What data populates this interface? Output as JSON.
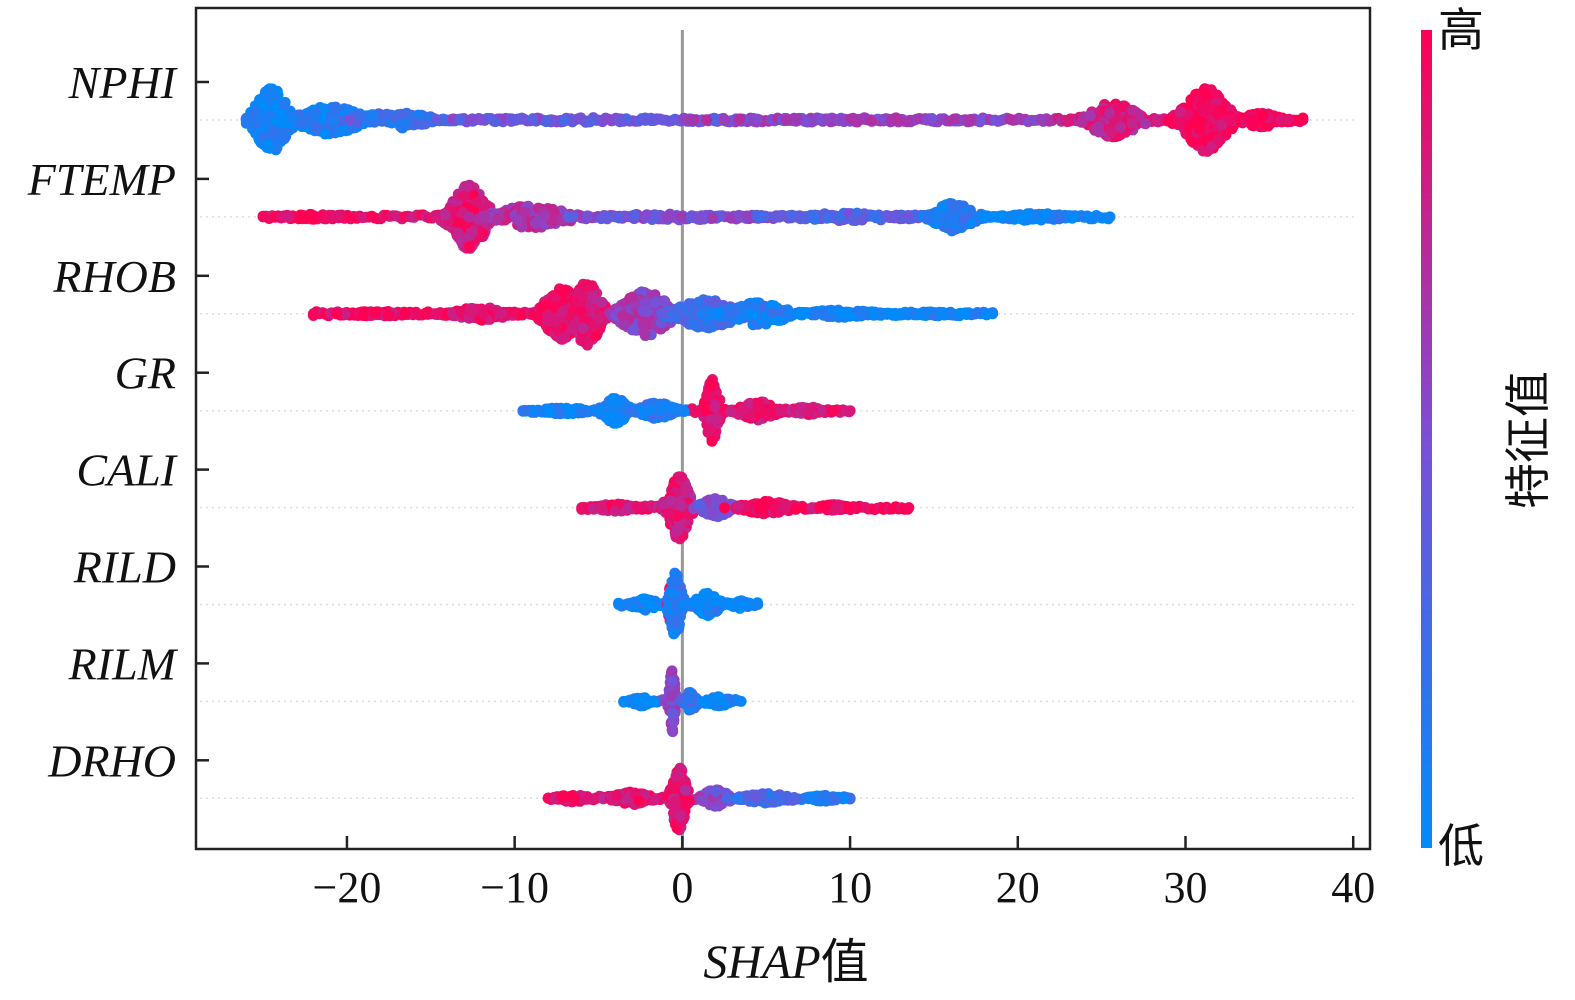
{
  "chart_data": {
    "type": "scatter",
    "subtype": "beeswarm",
    "xlabel": {
      "prefix": "SHAP",
      "suffix": "值"
    },
    "xlim": [
      -29,
      41
    ],
    "xticks": [
      -20,
      -10,
      0,
      10,
      20,
      30,
      40
    ],
    "xtick_labels": [
      "−20",
      "−10",
      "0",
      "10",
      "20",
      "30",
      "40"
    ],
    "zero_line": 0,
    "colorbar": {
      "title": "特征值",
      "high_label": "高",
      "low_label": "低",
      "high_color": "#ff0052",
      "low_color": "#008bfb",
      "mid_color": "#7b4fd6"
    },
    "features": [
      {
        "name": "NPHI",
        "range": [
          -26,
          37
        ],
        "clusters": [
          {
            "x": -24.5,
            "spread": 1.4,
            "height": 1.0,
            "value": 0.05
          },
          {
            "x": -21,
            "spread": 2.5,
            "height": 0.45,
            "value": 0.1
          },
          {
            "x": -17,
            "spread": 3,
            "height": 0.25,
            "value": 0.2
          },
          {
            "x": -5,
            "spread": 12,
            "height": 0.08,
            "value": 0.45
          },
          {
            "x": 10,
            "spread": 10,
            "height": 0.08,
            "value": 0.6
          },
          {
            "x": 25.7,
            "spread": 2,
            "height": 0.55,
            "value": 0.8
          },
          {
            "x": 31.2,
            "spread": 1.8,
            "height": 1.0,
            "value": 0.95
          },
          {
            "x": 34.5,
            "spread": 1.5,
            "height": 0.22,
            "value": 0.98
          }
        ]
      },
      {
        "name": "FTEMP",
        "range": [
          -25,
          25.5
        ],
        "clusters": [
          {
            "x": -22,
            "spread": 2,
            "height": 0.08,
            "value": 0.95
          },
          {
            "x": -12.7,
            "spread": 1.5,
            "height": 1.0,
            "value": 0.85
          },
          {
            "x": -9,
            "spread": 3,
            "height": 0.35,
            "value": 0.7
          },
          {
            "x": 0,
            "spread": 7,
            "height": 0.1,
            "value": 0.5
          },
          {
            "x": 10,
            "spread": 5,
            "height": 0.12,
            "value": 0.35
          },
          {
            "x": 16.2,
            "spread": 1.6,
            "height": 0.45,
            "value": 0.1
          },
          {
            "x": 21,
            "spread": 2.5,
            "height": 0.12,
            "value": 0.05
          }
        ]
      },
      {
        "name": "RHOB",
        "range": [
          -22,
          18.5
        ],
        "clusters": [
          {
            "x": -18,
            "spread": 3,
            "height": 0.08,
            "value": 0.95
          },
          {
            "x": -12,
            "spread": 2.5,
            "height": 0.2,
            "value": 0.9
          },
          {
            "x": -7.2,
            "spread": 1.5,
            "height": 0.8,
            "value": 0.92
          },
          {
            "x": -5.7,
            "spread": 1.2,
            "height": 1.0,
            "value": 0.88
          },
          {
            "x": -2.2,
            "spread": 2,
            "height": 0.7,
            "value": 0.6
          },
          {
            "x": 1.5,
            "spread": 2.5,
            "height": 0.45,
            "value": 0.3
          },
          {
            "x": 4.5,
            "spread": 2.5,
            "height": 0.35,
            "value": 0.12
          },
          {
            "x": 9.5,
            "spread": 3,
            "height": 0.12,
            "value": 0.05
          },
          {
            "x": 15,
            "spread": 2.5,
            "height": 0.06,
            "value": 0.05
          }
        ]
      },
      {
        "name": "GR",
        "range": [
          -9.5,
          10
        ],
        "clusters": [
          {
            "x": -7,
            "spread": 2,
            "height": 0.1,
            "value": 0.05
          },
          {
            "x": -4,
            "spread": 1,
            "height": 0.4,
            "value": 0.05
          },
          {
            "x": -1.5,
            "spread": 1.5,
            "height": 0.25,
            "value": 0.15
          },
          {
            "x": 1.8,
            "spread": 0.55,
            "height": 1.0,
            "value": 0.9
          },
          {
            "x": 4.5,
            "spread": 1.5,
            "height": 0.3,
            "value": 0.9
          },
          {
            "x": 7.5,
            "spread": 1.5,
            "height": 0.12,
            "value": 0.85
          }
        ]
      },
      {
        "name": "CALI",
        "range": [
          -6,
          13.5
        ],
        "clusters": [
          {
            "x": -4,
            "spread": 1.5,
            "height": 0.12,
            "value": 0.9
          },
          {
            "x": -0.2,
            "spread": 0.9,
            "height": 1.0,
            "value": 0.85
          },
          {
            "x": 2,
            "spread": 1.2,
            "height": 0.3,
            "value": 0.5
          },
          {
            "x": 5,
            "spread": 2,
            "height": 0.2,
            "value": 0.95
          },
          {
            "x": 9,
            "spread": 1,
            "height": 0.1,
            "value": 0.95
          }
        ]
      },
      {
        "name": "RILD",
        "range": [
          -3.8,
          4.5
        ],
        "clusters": [
          {
            "x": -2.2,
            "spread": 1,
            "height": 0.18,
            "value": 0.05
          },
          {
            "x": -0.6,
            "spread": 0.35,
            "height": 0.7,
            "value": 0.8
          },
          {
            "x": -0.4,
            "spread": 0.5,
            "height": 1.0,
            "value": 0.15
          },
          {
            "x": 1.5,
            "spread": 1,
            "height": 0.35,
            "value": 0.05
          },
          {
            "x": 3.5,
            "spread": 0.7,
            "height": 0.12,
            "value": 0.05
          }
        ]
      },
      {
        "name": "RILM",
        "range": [
          -3.5,
          3.5
        ],
        "clusters": [
          {
            "x": -2.5,
            "spread": 0.8,
            "height": 0.15,
            "value": 0.05
          },
          {
            "x": -0.6,
            "spread": 0.25,
            "height": 1.0,
            "value": 0.55
          },
          {
            "x": 0.5,
            "spread": 0.5,
            "height": 0.3,
            "value": 0.2
          },
          {
            "x": 2.2,
            "spread": 0.9,
            "height": 0.15,
            "value": 0.05
          }
        ]
      },
      {
        "name": "DRHO",
        "range": [
          -8,
          10
        ],
        "clusters": [
          {
            "x": -6.5,
            "spread": 1.2,
            "height": 0.12,
            "value": 0.95
          },
          {
            "x": -3,
            "spread": 1.5,
            "height": 0.2,
            "value": 0.9
          },
          {
            "x": -0.2,
            "spread": 0.6,
            "height": 1.0,
            "value": 0.85
          },
          {
            "x": 2,
            "spread": 1,
            "height": 0.3,
            "value": 0.55
          },
          {
            "x": 5,
            "spread": 2,
            "height": 0.15,
            "value": 0.3
          },
          {
            "x": 8.5,
            "spread": 1.2,
            "height": 0.1,
            "value": 0.1
          }
        ]
      }
    ]
  }
}
